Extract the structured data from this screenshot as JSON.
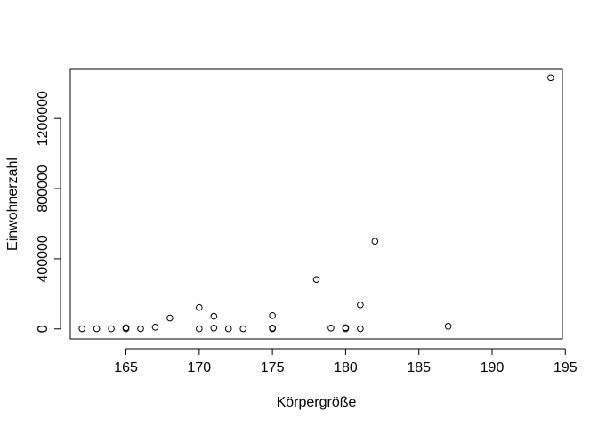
{
  "chart_data": {
    "type": "scatter",
    "title": "",
    "xlabel": "Körpergröße",
    "ylabel": "Einwohnerzahl",
    "xlim": [
      161.2,
      194.8
    ],
    "ylim": [
      -57000,
      1480000
    ],
    "x_ticks": [
      165,
      170,
      175,
      180,
      185,
      190,
      195
    ],
    "y_ticks": [
      0,
      400000,
      800000,
      1200000
    ],
    "grid": false,
    "legend": "none",
    "marker": "open-circle",
    "points": [
      {
        "x": 162,
        "y": 1000
      },
      {
        "x": 163,
        "y": 1000
      },
      {
        "x": 164,
        "y": 1000
      },
      {
        "x": 165,
        "y": 1000
      },
      {
        "x": 165,
        "y": 7000
      },
      {
        "x": 166,
        "y": 1000
      },
      {
        "x": 167,
        "y": 10000
      },
      {
        "x": 168,
        "y": 62000
      },
      {
        "x": 170,
        "y": 1000
      },
      {
        "x": 170,
        "y": 122000
      },
      {
        "x": 171,
        "y": 5000
      },
      {
        "x": 171,
        "y": 72000
      },
      {
        "x": 172,
        "y": 1000
      },
      {
        "x": 173,
        "y": 1000
      },
      {
        "x": 175,
        "y": 1000
      },
      {
        "x": 175,
        "y": 5000
      },
      {
        "x": 175,
        "y": 76000
      },
      {
        "x": 178,
        "y": 282000
      },
      {
        "x": 179,
        "y": 5000
      },
      {
        "x": 180,
        "y": 1000
      },
      {
        "x": 180,
        "y": 7000
      },
      {
        "x": 181,
        "y": 1000
      },
      {
        "x": 181,
        "y": 137000
      },
      {
        "x": 182,
        "y": 500000
      },
      {
        "x": 187,
        "y": 15000
      },
      {
        "x": 194,
        "y": 1433000
      }
    ]
  }
}
